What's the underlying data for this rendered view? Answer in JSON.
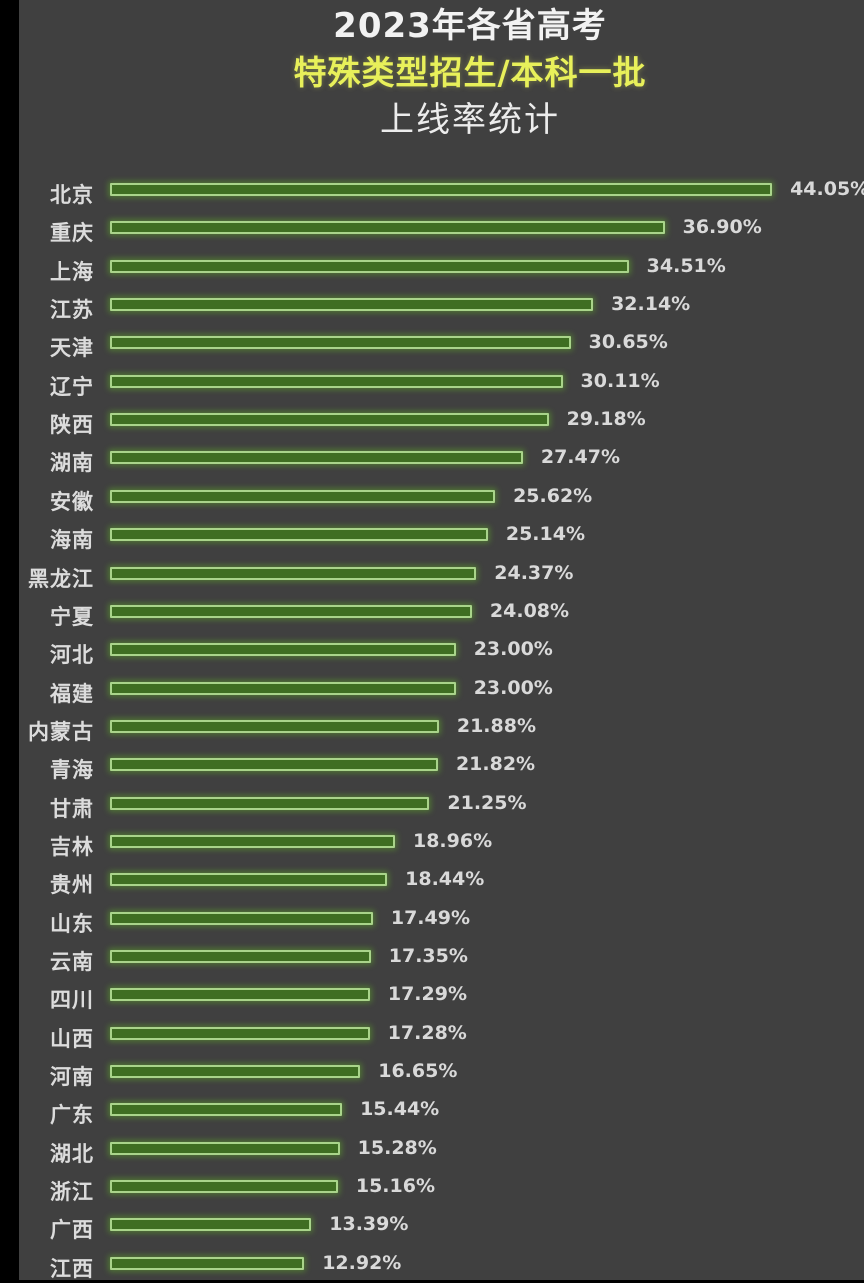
{
  "title": {
    "line1": "2023年各省高考",
    "line2": "特殊类型招生/本科一批",
    "line3": "上线率统计"
  },
  "colors": {
    "background": "#404040",
    "left_strip": "#000000",
    "bar_fill": "#3f6e22",
    "bar_border": "#a9d48a",
    "title_highlight": "#e8f05a",
    "text": "#dcdcdc"
  },
  "chart_data": {
    "type": "bar",
    "orientation": "horizontal",
    "title": "2023年各省高考 特殊类型招生/本科一批 上线率统计",
    "xlabel": "",
    "ylabel": "",
    "grid": false,
    "legend": null,
    "unit": "%",
    "categories": [
      "北京",
      "重庆",
      "上海",
      "江苏",
      "天津",
      "辽宁",
      "陕西",
      "湖南",
      "安徽",
      "海南",
      "黑龙江",
      "宁夏",
      "河北",
      "福建",
      "内蒙古",
      "青海",
      "甘肃",
      "吉林",
      "贵州",
      "山东",
      "云南",
      "四川",
      "山西",
      "河南",
      "广东",
      "湖北",
      "浙江",
      "广西",
      "江西"
    ],
    "values": [
      44.05,
      36.9,
      34.51,
      32.14,
      30.65,
      30.11,
      29.18,
      27.47,
      25.62,
      25.14,
      24.37,
      24.08,
      23.0,
      23.0,
      21.88,
      21.82,
      21.25,
      18.96,
      18.44,
      17.49,
      17.35,
      17.29,
      17.28,
      16.65,
      15.44,
      15.28,
      15.16,
      13.39,
      12.92
    ],
    "value_labels": [
      "44.05%",
      "36.90%",
      "34.51%",
      "32.14%",
      "30.65%",
      "30.11%",
      "29.18%",
      "27.47%",
      "25.62%",
      "25.14%",
      "24.37%",
      "24.08%",
      "23.00%",
      "23.00%",
      "21.88%",
      "21.82%",
      "21.25%",
      "18.96%",
      "18.44%",
      "17.49%",
      "17.35%",
      "17.29%",
      "17.28%",
      "16.65%",
      "15.44%",
      "15.28%",
      "15.16%",
      "13.39%",
      "12.92%"
    ]
  }
}
